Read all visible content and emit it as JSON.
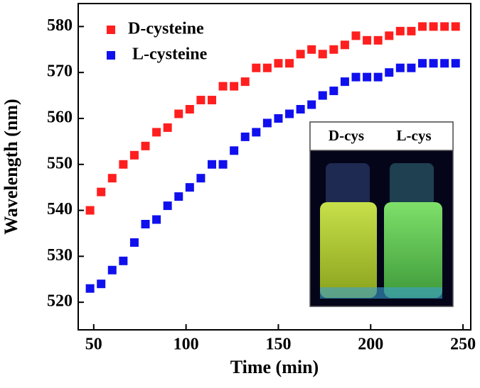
{
  "chart_data": {
    "type": "scatter",
    "x_label": "Time (min)",
    "y_label": "Wavelength (nm)",
    "xlim": [
      41.6,
      254.2
    ],
    "ylim": [
      514,
      585
    ],
    "xticks": [
      50,
      100,
      150,
      200,
      250
    ],
    "yticks": [
      520,
      530,
      540,
      550,
      560,
      570,
      580
    ],
    "x": [
      48,
      54,
      60,
      66,
      72,
      78,
      84,
      90,
      96,
      102,
      108,
      114,
      120,
      126,
      132,
      138,
      144,
      150,
      156,
      162,
      168,
      174,
      180,
      186,
      192,
      198,
      204,
      210,
      216,
      222,
      228,
      234,
      240,
      246
    ],
    "series": [
      {
        "name": "D-cysteine",
        "color": "#ff1f1f",
        "values": [
          540,
          544,
          547,
          550,
          552,
          554,
          557,
          558,
          561,
          562,
          564,
          564,
          567,
          567,
          568,
          571,
          571,
          572,
          572,
          574,
          575,
          574,
          575,
          576,
          578,
          577,
          577,
          578,
          579,
          579,
          580,
          580,
          580,
          580
        ]
      },
      {
        "name": "L-cysteine",
        "color": "#1010ee",
        "values": [
          523,
          524,
          527,
          529,
          533,
          537,
          538,
          541,
          543,
          545,
          547,
          550,
          550,
          553,
          556,
          557,
          559,
          560,
          561,
          562,
          563,
          565,
          566,
          568,
          569,
          569,
          569,
          570,
          571,
          571,
          572,
          572,
          572,
          572
        ]
      }
    ]
  },
  "inset": {
    "labels": [
      "D-cys",
      "L-cys"
    ]
  }
}
